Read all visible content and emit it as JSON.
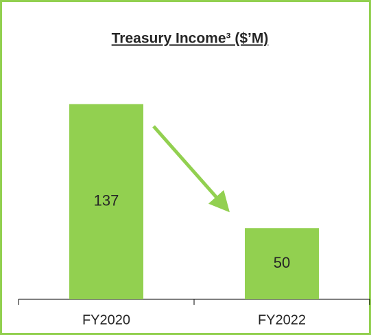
{
  "chart_data": {
    "type": "bar",
    "title": "Treasury Income³ ($’M)",
    "categories": [
      "FY2020",
      "FY2022"
    ],
    "values": [
      137,
      50
    ],
    "color": "#92d050",
    "ylim": [
      0,
      160
    ]
  }
}
